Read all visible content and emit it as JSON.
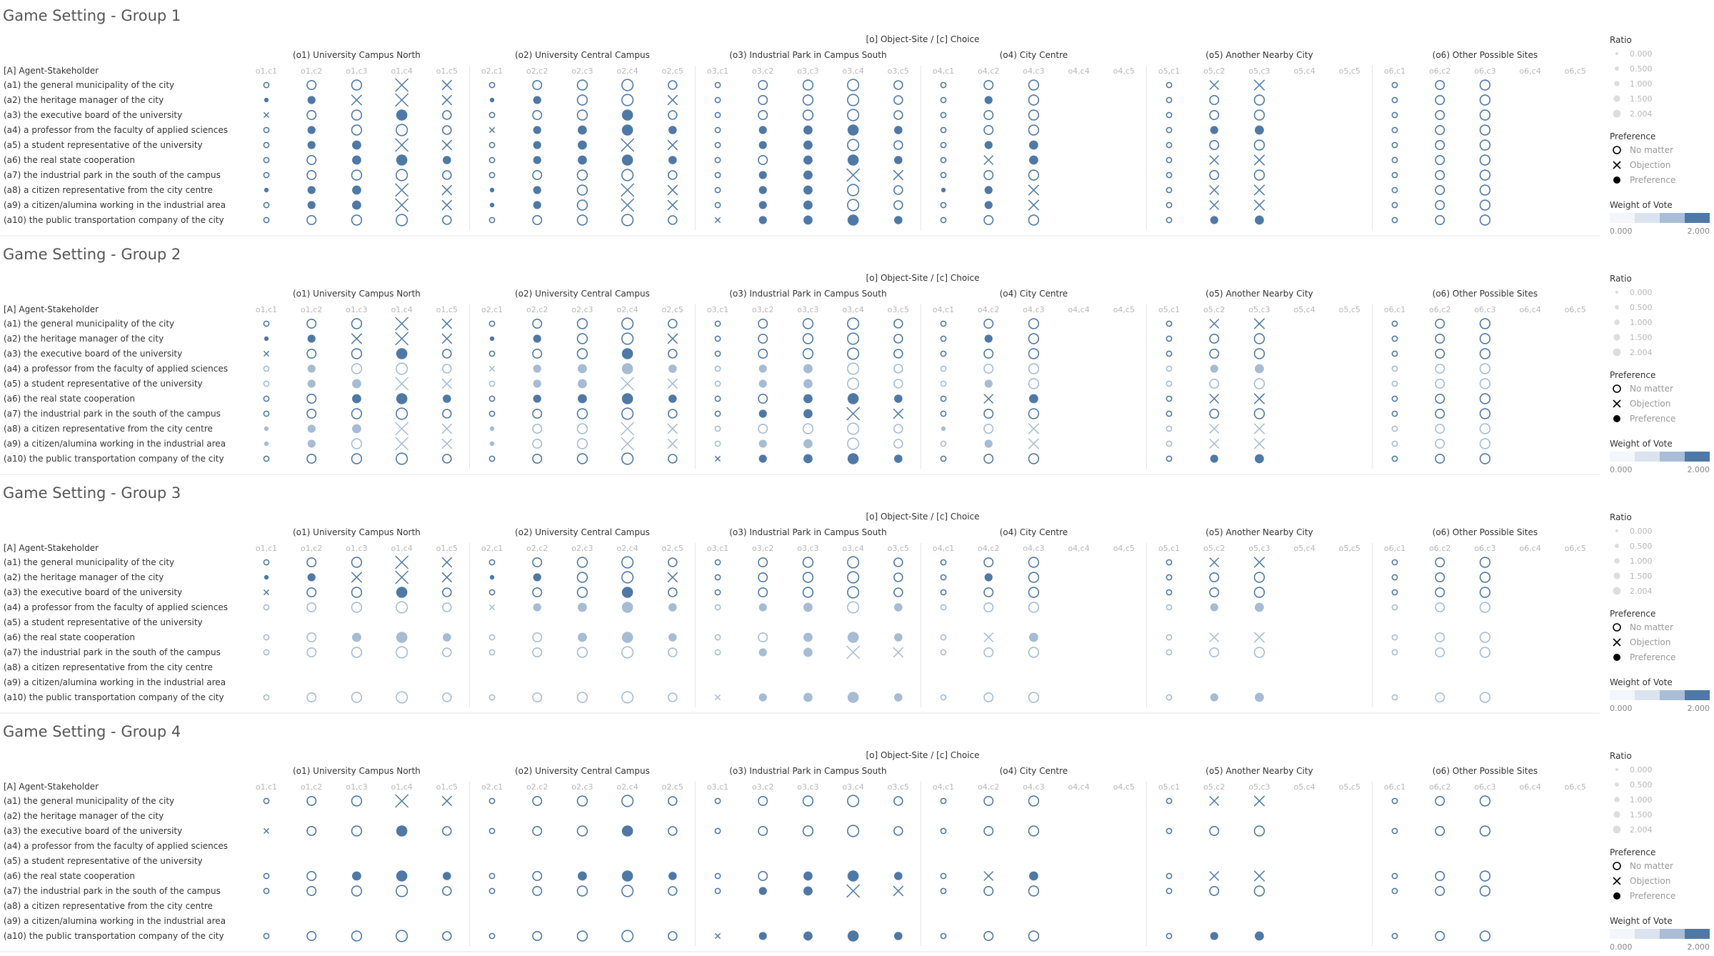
{
  "colors": {
    "mark": "#4e79a7",
    "title_text": "#555555",
    "label_text": "#333333",
    "faint_text": "#b8b8b8",
    "legend_black": "#000000",
    "separator": "#e3e3e3",
    "weight_scale": [
      "#f3f6fa",
      "#dae3ee",
      "#a9bed6",
      "#4e79a7"
    ]
  },
  "header": {
    "axis_title": "[o] Object-Site  /  [c] Choice",
    "row_header": "[A] Agent-Stakeholder"
  },
  "groups_labels": [
    "Game Setting - Group 1",
    "Game Setting - Group 2",
    "Game Setting - Group 3",
    "Game Setting - Group 4"
  ],
  "legend": {
    "ratio_title": "Ratio",
    "ratio_values": [
      "0.000",
      "0.500",
      "1.000",
      "1.500",
      "2.004"
    ],
    "preference_title": "Preference",
    "preference_items": [
      "No matter",
      "Objection",
      "Preference"
    ],
    "weight_title": "Weight of Vote",
    "weight_min": "0.000",
    "weight_max": "2.000"
  },
  "chart_data": {
    "type": "scatter",
    "title": "",
    "sites": [
      {
        "label": "(o1) University Campus North",
        "choices": [
          "o1,c1",
          "o1,c2",
          "o1,c3",
          "o1,c4",
          "o1,c5"
        ]
      },
      {
        "label": "(o2) University Central Campus",
        "choices": [
          "o2,c1",
          "o2,c2",
          "o2,c3",
          "o2,c4",
          "o2,c5"
        ]
      },
      {
        "label": "(o3) Industrial Park in Campus South",
        "choices": [
          "o3,c1",
          "o3,c2",
          "o3,c3",
          "o3,c4",
          "o3,c5"
        ]
      },
      {
        "label": "(o4) City Centre",
        "choices": [
          "o4,c1",
          "o4,c2",
          "o4,c3",
          "o4,c4",
          "o4,c5"
        ]
      },
      {
        "label": "(o5) Another Nearby City",
        "choices": [
          "o5,c1",
          "o5,c2",
          "o5,c3",
          "o5,c4",
          "o5,c5"
        ]
      },
      {
        "label": "(o6) Other Possible Sites",
        "choices": [
          "o6,c1",
          "o6,c2",
          "o6,c3",
          "o6,c4",
          "o6,c5"
        ]
      }
    ],
    "agents": [
      "(a1) the general municipality of the city",
      "(a2) the heritage manager of the city",
      "(a3) the executive board of the university",
      "(a4) a professor from the faculty of applied sciences",
      "(a5) a student representative of the university",
      "(a6) the real state cooperation",
      "(a7) the industrial park in the south of the campus",
      "(a8) a citizen representative from the city centre",
      "(a9) a citizen/alumina working in the industrial area",
      "(a10) the public transportation company of the city"
    ],
    "encoding": {
      "size": "Ratio",
      "shape": "Preference (O = No matter, X = Objection, F = Preference)",
      "shade": "Weight of Vote"
    },
    "groups": [
      {
        "title": "Game Setting - Group 1",
        "weights": [
          2,
          2,
          2,
          2,
          2,
          2,
          2,
          2,
          2,
          2
        ],
        "rows": [
          "O O O X X|O O O O O|O O O O O|O O O - -|O X X - -|O O O - -",
          "F F X X X|F F O O X|O O O O O|O F O - -|O O O - -|O O O - -",
          "X O O F O|O O O F O|O O O O O|O O O - -|O O O - -|O O O - -",
          "O F O O O|X F F F F|O F F F F|O O O - -|O F F - -|O O O - -",
          "O F F X X|O F F X X|O F F O O|O F F - -|O O O - -|O O O - -",
          "O O F F F|O F F F F|O O F F F|O X F - -|O X X - -|O O O - -",
          "O O O O O|O O O O O|O F F X X|O O O - -|O O O - -|O O O - -",
          "F F F X X|F F O X X|O F F O O|F F X - -|O X X - -|O O O - -",
          "O F F X X|F F O X X|O F F O O|O F X - -|O X X - -|O O O - -",
          "O O O O O|O O O O O|X F F F F|O O O - -|O F F - -|O O O - -"
        ]
      },
      {
        "title": "Game Setting - Group 2",
        "weights": [
          2,
          2,
          2,
          1,
          1,
          2,
          2,
          1,
          1,
          2
        ],
        "rows": [
          "O O O X X|O O O O O|O O O O O|O O O - -|O X X - -|O O O - -",
          "F F X X X|F F O O X|O O O O O|O F O - -|O O O - -|O O O - -",
          "X O O F O|O O O F O|O O O O O|O O O - -|O O O - -|O O O - -",
          "O F O O O|X F F F F|O F F O O|O O O - -|O F F - -|O O O - -",
          "O F F X X|O F F X X|O F F O O|O F O - -|O O O - -|O O O - -",
          "O O F F F|O F F F F|O O F F F|O X F - -|O X X - -|O O O - -",
          "O O O O O|O O O O O|O F F X X|O O O - -|O O O - -|O O O - -",
          "F F F X X|F O O X X|O O O O O|F O X - -|O X X - -|O O O - -",
          "F F O X X|F O O X X|O F F O O|O F X - -|O X X - -|O O O - -",
          "O O O O O|O O O O O|X F F F F|O O O - -|O F F - -|O O O - -"
        ]
      },
      {
        "title": "Game Setting - Group 3",
        "weights": [
          2,
          2,
          2,
          1,
          0,
          1,
          1,
          0,
          0,
          1
        ],
        "rows": [
          "O O O X X|O O O O O|O O O O O|O O O - -|O X X - -|O O O - -",
          "F F X X X|F F O O X|O O O O O|O F O - -|O O O - -|O O O - -",
          "X O O F O|O O O F O|O O O O O|O O O - -|O O O - -|O O O - -",
          "O O O O O|X F F F F|O F F O F|O O O - -|O F F - -|O O O - -",
          "- - - - -|- - - - -|- - - - -|- - - - -|- - - - -|- - - - -",
          "O O F F F|O O F F F|O O F F F|O X F - -|O X X - -|O O O - -",
          "O O O O O|O O O O O|O F F X X|O O O - -|O O O - -|O O O - -",
          "- - - - -|- - - - -|- - - - -|- - - - -|- - - - -|- - - - -",
          "- - - - -|- - - - -|- - - - -|- - - - -|- - - - -|- - - - -",
          "O O O O O|O O O O O|X F F F F|O O O - -|O F F - -|O O O - -"
        ]
      },
      {
        "title": "Game Setting - Group 4",
        "weights": [
          2,
          0,
          2,
          0,
          0,
          2,
          2,
          0,
          0,
          2
        ],
        "rows": [
          "O O O X X|O O O O O|O O O O O|O O O - -|O X X - -|O O O - -",
          "- - - - -|- - - - -|- - - - -|- - - - -|- - - - -|- - - - -",
          "X O O F O|O O O F O|O O O O O|O O O - -|O O O - -|O O O - -",
          "- - - - -|- - - - -|- - - - -|- - - - -|- - - - -|- - - - -",
          "- - - - -|- - - - -|- - - - -|- - - - -|- - - - -|- - - - -",
          "O O F F F|O O F F F|O O F F F|O X F - -|O X X - -|O O O - -",
          "O O O O O|O O O O O|O F F X X|O O O - -|O O O - -|O O O - -",
          "- - - - -|- - - - -|- - - - -|- - - - -|- - - - -|- - - - -",
          "- - - - -|- - - - -|- - - - -|- - - - -|- - - - -|- - - - -",
          "O O O O O|O O O O O|X F F F F|O O O - -|O F F - -|O O O - -"
        ]
      }
    ]
  }
}
